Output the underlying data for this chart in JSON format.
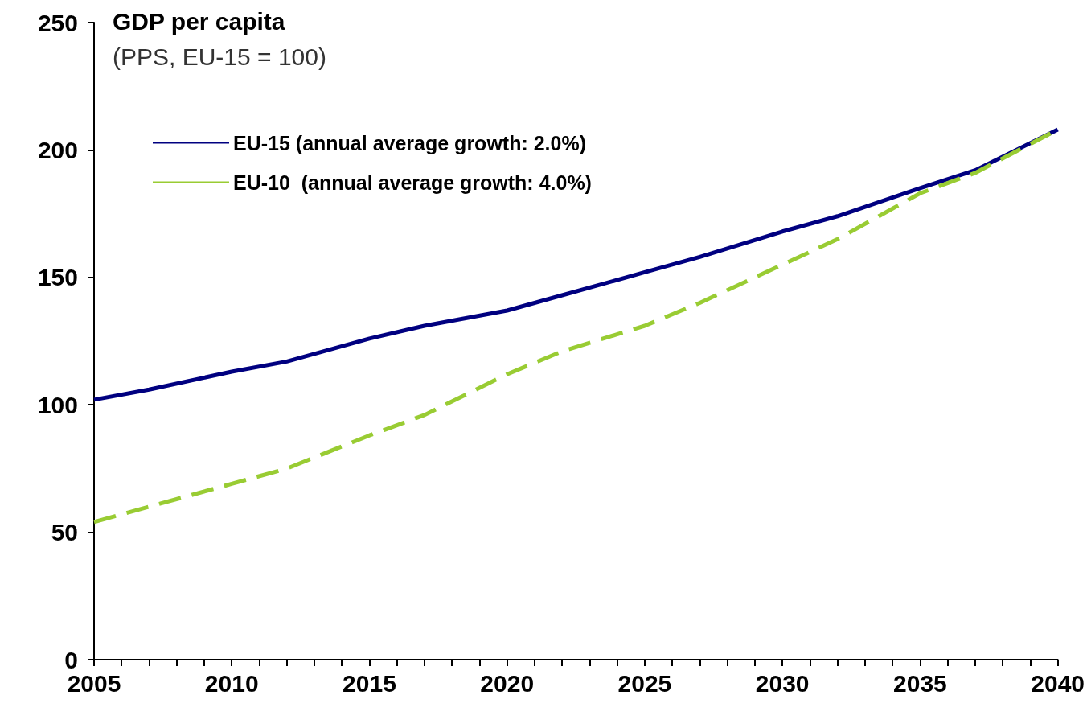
{
  "chart_data": {
    "type": "line",
    "title": "GDP per capita",
    "subtitle": "(PPS, EU-15 = 100)",
    "xlim": [
      2005,
      2040
    ],
    "xticks": [
      2005,
      {
        "value": 2006,
        "label": null
      },
      {
        "value": 2007,
        "label": null
      },
      {
        "value": 2008,
        "label": null
      },
      {
        "value": 2009,
        "label": null
      },
      2010,
      {
        "value": 2011,
        "label": null
      },
      {
        "value": 2012,
        "label": null
      },
      {
        "value": 2013,
        "label": null
      },
      {
        "value": 2014,
        "label": null
      },
      2015,
      {
        "value": 2016,
        "label": null
      },
      {
        "value": 2017,
        "label": null
      },
      {
        "value": 2018,
        "label": null
      },
      {
        "value": 2019,
        "label": null
      },
      2020,
      {
        "value": 2021,
        "label": null
      },
      {
        "value": 2022,
        "label": null
      },
      {
        "value": 2023,
        "label": null
      },
      {
        "value": 2024,
        "label": null
      },
      2025,
      {
        "value": 2026,
        "label": null
      },
      {
        "value": 2027,
        "label": null
      },
      {
        "value": 2028,
        "label": null
      },
      {
        "value": 2029,
        "label": null
      },
      2030,
      {
        "value": 2031,
        "label": null
      },
      {
        "value": 2032,
        "label": null
      },
      {
        "value": 2033,
        "label": null
      },
      {
        "value": 2034,
        "label": null
      },
      2035,
      {
        "value": 2036,
        "label": null
      },
      {
        "value": 2037,
        "label": null
      },
      {
        "value": 2038,
        "label": null
      },
      {
        "value": 2039,
        "label": null
      },
      2040
    ],
    "ylim": [
      0,
      250
    ],
    "yticks": [
      0,
      50,
      100,
      150,
      200,
      250
    ],
    "grid": false,
    "legend": "top left",
    "marker": "none",
    "series": [
      {
        "name": "EU-15 (annual average growth: 2.0%)",
        "color": "#000080",
        "line_style": "solid",
        "x": [
          2005,
          2007,
          2010,
          2012,
          2015,
          2017,
          2020,
          2022,
          2025,
          2027,
          2030,
          2032,
          2035,
          2037,
          2040
        ],
        "values": [
          102,
          106,
          113,
          117,
          126,
          131,
          137,
          143,
          152,
          158,
          168,
          174,
          185,
          192,
          208
        ]
      },
      {
        "name": "EU-10  (annual average growth: 4.0%)",
        "color": "#99cc33",
        "line_style": "dashed",
        "x": [
          2005,
          2007,
          2010,
          2012,
          2015,
          2017,
          2020,
          2022,
          2025,
          2027,
          2030,
          2032,
          2035,
          2037,
          2040
        ],
        "values": [
          54,
          60,
          69,
          75,
          88,
          96,
          112,
          121,
          131,
          140,
          155,
          165,
          183,
          191,
          208
        ]
      }
    ]
  }
}
